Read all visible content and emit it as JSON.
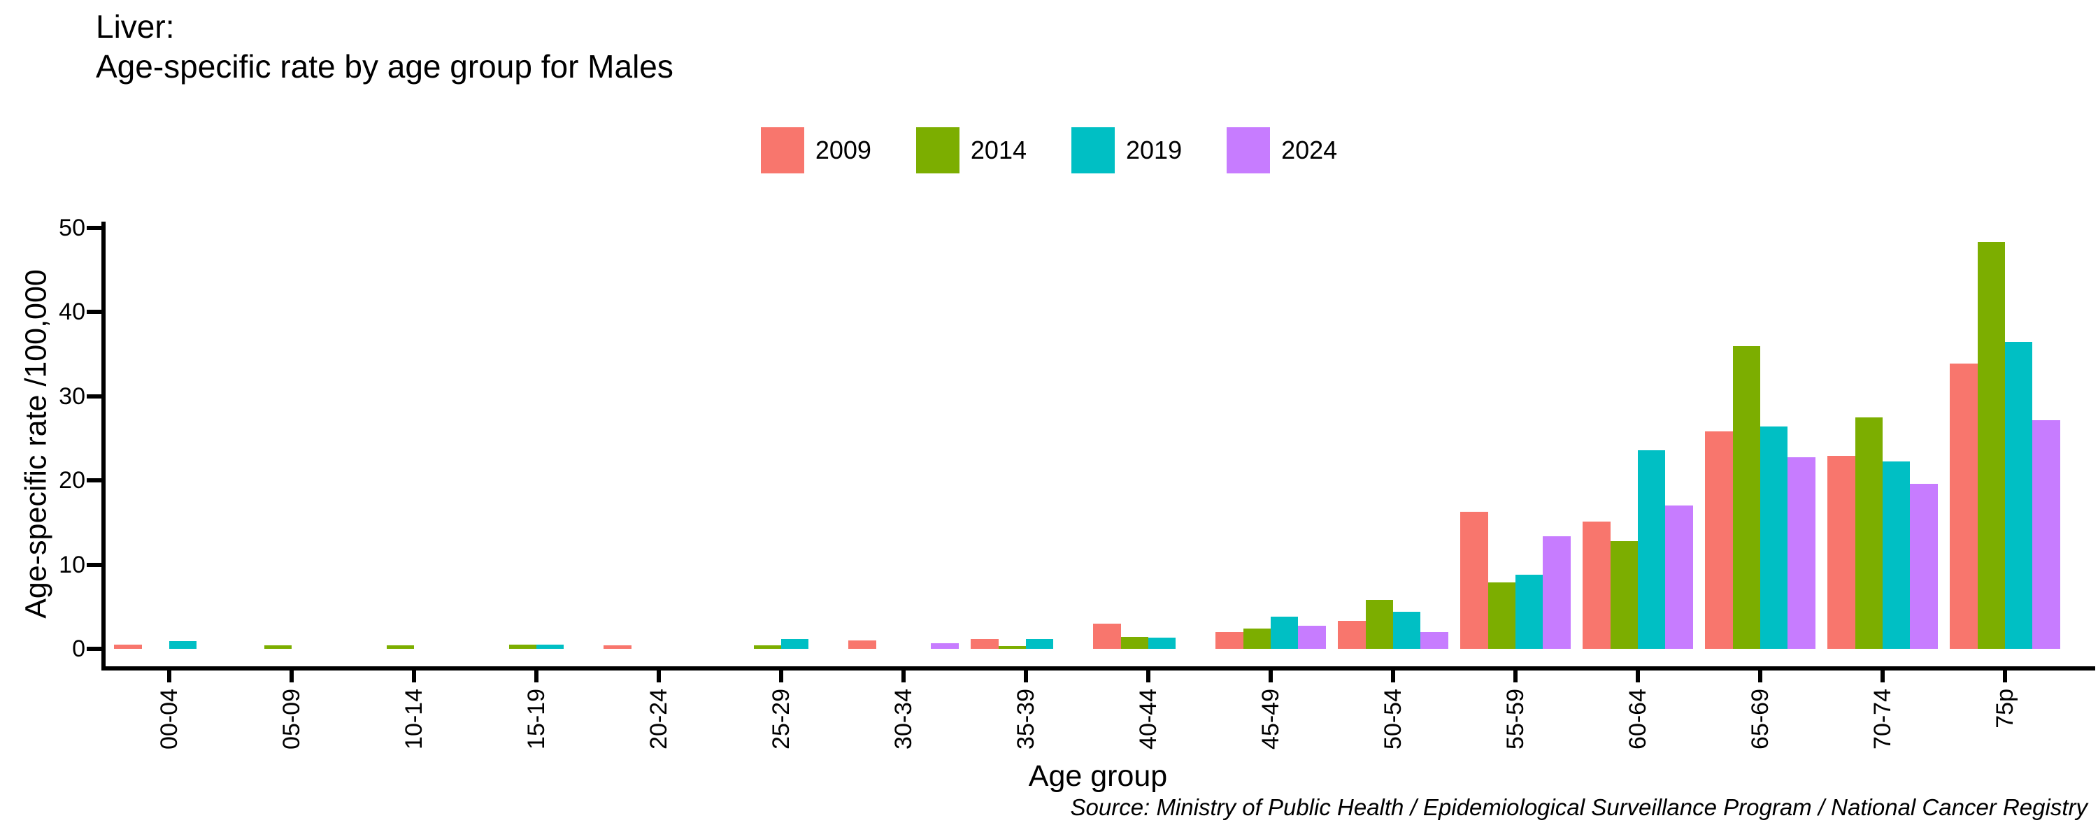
{
  "title": {
    "line1": "Liver:",
    "line2": "Age-specific rate by age group for Males"
  },
  "legend": {
    "items": [
      {
        "label": "2009",
        "color": "#F8766D"
      },
      {
        "label": "2014",
        "color": "#7CAE00"
      },
      {
        "label": "2019",
        "color": "#00BFC4"
      },
      {
        "label": "2024",
        "color": "#C77CFF"
      }
    ]
  },
  "axes": {
    "y": {
      "title": "Age-specific rate /100,000",
      "ticks": [
        0,
        10,
        20,
        30,
        40,
        50
      ]
    },
    "x": {
      "title": "Age group"
    }
  },
  "source": "Source: Ministry of Public Health / Epidemiological Surveillance Program / National Cancer Registry",
  "chart_data": {
    "type": "bar",
    "title": "Liver: Age-specific rate by age group for Males",
    "categories": [
      "00-04",
      "05-09",
      "10-14",
      "15-19",
      "20-24",
      "25-29",
      "30-34",
      "35-39",
      "40-44",
      "45-49",
      "50-54",
      "55-59",
      "60-64",
      "65-69",
      "70-74",
      "75p"
    ],
    "series": [
      {
        "name": "2009",
        "color": "#F8766D",
        "values": [
          0.5,
          0,
          0,
          0,
          0.4,
          0,
          1.0,
          1.2,
          3.0,
          2.0,
          3.3,
          16.3,
          15.1,
          25.8,
          22.9,
          33.9
        ]
      },
      {
        "name": "2014",
        "color": "#7CAE00",
        "values": [
          0,
          0.4,
          0.4,
          0.5,
          0,
          0.4,
          0,
          0.3,
          1.4,
          2.4,
          5.8,
          7.9,
          12.8,
          35.9,
          27.5,
          48.3
        ]
      },
      {
        "name": "2019",
        "color": "#00BFC4",
        "values": [
          0.9,
          0,
          0,
          0.5,
          0,
          1.2,
          0,
          1.2,
          1.3,
          3.8,
          4.4,
          8.8,
          23.6,
          26.4,
          22.2,
          36.4
        ]
      },
      {
        "name": "2024",
        "color": "#C77CFF",
        "values": [
          0,
          0,
          0,
          0,
          0,
          0,
          0.7,
          0,
          0,
          2.7,
          2.0,
          13.4,
          17.0,
          22.7,
          19.6,
          27.1
        ]
      }
    ],
    "xlabel": "Age group",
    "ylabel": "Age-specific rate /100,000",
    "ylim": [
      0,
      50
    ],
    "yticks": [
      0,
      10,
      20,
      30,
      40,
      50
    ],
    "grid": false,
    "legend_position": "top-center",
    "bar_mode": "grouped"
  }
}
